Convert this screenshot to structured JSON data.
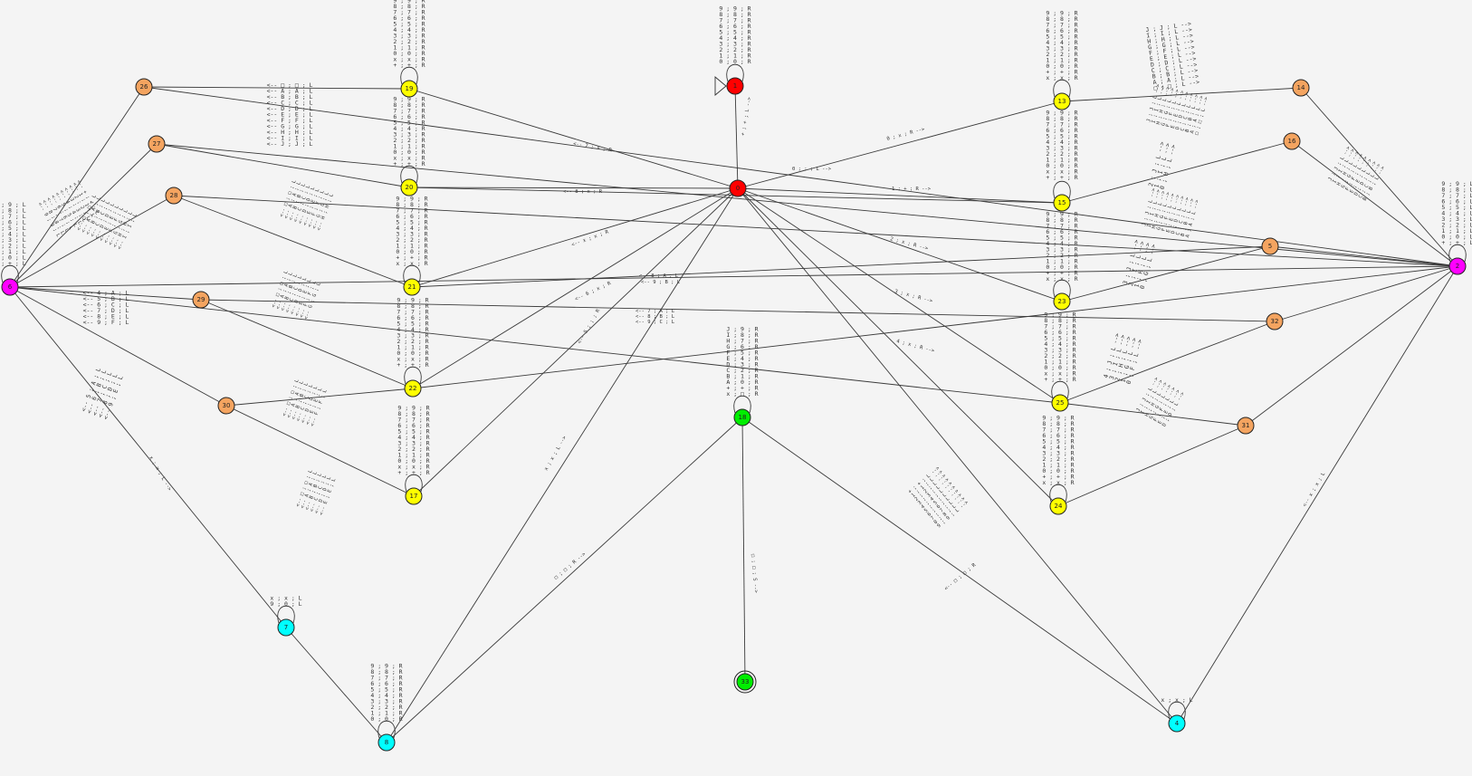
{
  "colors": {
    "magenta": "#ff00ff",
    "orange": "#f4a460",
    "yellow": "#ffff00",
    "red": "#ff0000",
    "green": "#00ee00",
    "cyan": "#00ffff"
  },
  "nodes": [
    {
      "id": "n6",
      "label": "6",
      "color": "magenta"
    },
    {
      "id": "n26",
      "label": "26",
      "color": "orange"
    },
    {
      "id": "n27",
      "label": "27",
      "color": "orange"
    },
    {
      "id": "n28",
      "label": "28",
      "color": "orange"
    },
    {
      "id": "n29",
      "label": "29",
      "color": "orange"
    },
    {
      "id": "n30",
      "label": "30",
      "color": "orange"
    },
    {
      "id": "n19",
      "label": "19",
      "color": "yellow"
    },
    {
      "id": "n20",
      "label": "20",
      "color": "yellow"
    },
    {
      "id": "n21",
      "label": "21",
      "color": "yellow"
    },
    {
      "id": "n22",
      "label": "22",
      "color": "yellow"
    },
    {
      "id": "n17",
      "label": "17",
      "color": "yellow"
    },
    {
      "id": "n0",
      "label": "0",
      "color": "red"
    },
    {
      "id": "n1",
      "label": "1",
      "color": "red"
    },
    {
      "id": "n18",
      "label": "18",
      "color": "green"
    },
    {
      "id": "n33",
      "label": "33",
      "color": "green"
    },
    {
      "id": "n7",
      "label": "7",
      "color": "cyan"
    },
    {
      "id": "n8",
      "label": "8",
      "color": "cyan"
    },
    {
      "id": "n4",
      "label": "4",
      "color": "cyan"
    },
    {
      "id": "n13",
      "label": "13",
      "color": "yellow"
    },
    {
      "id": "n15",
      "label": "15",
      "color": "yellow"
    },
    {
      "id": "n23",
      "label": "23",
      "color": "yellow"
    },
    {
      "id": "n25",
      "label": "25",
      "color": "yellow"
    },
    {
      "id": "n24",
      "label": "24",
      "color": "yellow"
    },
    {
      "id": "n14",
      "label": "14",
      "color": "orange"
    },
    {
      "id": "n16",
      "label": "16",
      "color": "orange"
    },
    {
      "id": "n5",
      "label": "5",
      "color": "orange"
    },
    {
      "id": "n32",
      "label": "32",
      "color": "orange"
    },
    {
      "id": "n31",
      "label": "31",
      "color": "orange"
    },
    {
      "id": "n2",
      "label": "2",
      "color": "magenta"
    }
  ],
  "edge_labels": [
    "+ ; + ; L -->",
    "0 ; ; ; L -->",
    "0 ; x ; R -->",
    "1 ; + ; R -->",
    "<-- 8 ; x ; R",
    "<-- 7 ; x ; R",
    "<-- x ; x ; R",
    "<-- 8 ; A ; L",
    "<-- 9 ; B ; L",
    "<-- 6 ; x ; R",
    "<-- 5 ; ; ; R",
    "x ; x ; L -->",
    "x ; x ; L -->",
    "□ ; □ ; R -->",
    "□ ; □ ; S -->",
    "<-- □ ; □ ; R",
    "<-- x ; x ; L",
    "2 ; x ; R -->",
    "3 ; x ; R -->",
    "4 ; x ; R -->",
    "<-- 7 ; A ; L",
    "<-- 8 ; B ; L",
    "<-- 9 ; C ; L"
  ],
  "stacks": {
    "s19": [
      "9 ; 9 ; R",
      "8 ; 8 ; R",
      "7 ; 7 ; R",
      "6 ; 6 ; R",
      "5 ; 5 ; R",
      "4 ; 4 ; R",
      "3 ; 3 ; R",
      "2 ; 2 ; R",
      "1 ; 1 ; R",
      "0 ; 0 ; R",
      "x ; x ; R",
      "+ ; + ; R"
    ],
    "s1": [
      "9 ; 9 ; R",
      "8 ; 8 ; R",
      "7 ; 7 ; R",
      "6 ; 6 ; R",
      "5 ; 5 ; R",
      "4 ; 4 ; R",
      "3 ; 3 ; R",
      "2 ; 2 ; R",
      "1 ; 1 ; R",
      "0 ; 0 ; R"
    ],
    "s13": [
      "9 ; 9 ; R",
      "8 ; 8 ; R",
      "7 ; 7 ; R",
      "6 ; 6 ; R",
      "5 ; 5 ; R",
      "4 ; 4 ; R",
      "3 ; 3 ; R",
      "2 ; 2 ; R",
      "1 ; 1 ; R",
      "0 ; 0 ; R",
      "+ ; + ; R",
      "x ; x ; R"
    ],
    "s20": [
      "9 ; 9 ; R",
      "8 ; 8 ; R",
      "7 ; 7 ; R",
      "6 ; 6 ; R",
      "5 ; 5 ; R",
      "4 ; 4 ; R",
      "3 ; 3 ; R",
      "2 ; 2 ; R",
      "1 ; 1 ; R",
      "0 ; 0 ; R",
      "x ; x ; R",
      "+ ; + ; R"
    ],
    "s15": [
      "9 ; 9 ; R",
      "8 ; 8 ; R",
      "7 ; 7 ; R",
      "6 ; 6 ; R",
      "5 ; 5 ; R",
      "4 ; 4 ; R",
      "3 ; 3 ; R",
      "2 ; 2 ; R",
      "1 ; 1 ; R",
      "0 ; 0 ; R",
      "x ; x ; R",
      "+ ; + ; R"
    ],
    "s21": [
      "9 ; 9 ; R",
      "8 ; 8 ; R",
      "7 ; 7 ; R",
      "6 ; 6 ; R",
      "5 ; 5 ; R",
      "4 ; 4 ; R",
      "3 ; 3 ; R",
      "2 ; 2 ; R",
      "1 ; 1 ; R",
      "0 ; 0 ; R",
      "+ ; + ; R",
      "x ; x ; R"
    ],
    "s23": [
      "9 ; 9 ; R",
      "8 ; 8 ; R",
      "7 ; 7 ; R",
      "6 ; 6 ; R",
      "5 ; 5 ; R",
      "4 ; 4 ; R",
      "3 ; 3 ; R",
      "2 ; 2 ; R",
      "1 ; 1 ; R",
      "0 ; 0 ; R",
      "+ ; + ; R",
      "x ; x ; R"
    ],
    "s22": [
      "9 ; 9 ; R",
      "8 ; 8 ; R",
      "7 ; 7 ; R",
      "6 ; 6 ; R",
      "5 ; 5 ; R",
      "4 ; 4 ; R",
      "3 ; 3 ; R",
      "2 ; 2 ; R",
      "1 ; 1 ; R",
      "0 ; 0 ; R",
      "x ; x ; R",
      "+ ; + ; R"
    ],
    "s25": [
      "9 ; 9 ; R",
      "8 ; 8 ; R",
      "7 ; 7 ; R",
      "6 ; 6 ; R",
      "5 ; 5 ; R",
      "4 ; 4 ; R",
      "3 ; 3 ; R",
      "2 ; 2 ; R",
      "1 ; 1 ; R",
      "0 ; 0 ; R",
      "x ; x ; R",
      "+ ; + ; R"
    ],
    "s17": [
      "9 ; 9 ; R",
      "8 ; 8 ; R",
      "7 ; 7 ; R",
      "6 ; 6 ; R",
      "5 ; 5 ; R",
      "4 ; 4 ; R",
      "3 ; 3 ; R",
      "2 ; 2 ; R",
      "1 ; 1 ; R",
      "0 ; 0 ; R",
      "x ; x ; R",
      "+ ; + ; R"
    ],
    "s24": [
      "9 ; 9 ; R",
      "8 ; 8 ; R",
      "7 ; 7 ; R",
      "6 ; 6 ; R",
      "5 ; 5 ; R",
      "4 ; 4 ; R",
      "3 ; 3 ; R",
      "2 ; 2 ; R",
      "1 ; 1 ; R",
      "0 ; 0 ; R",
      "+ ; + ; R",
      "x ; x ; R"
    ],
    "s18": [
      "J ; 9 ; R",
      "I ; 8 ; R",
      "H ; 7 ; R",
      "G ; 6 ; R",
      "F ; 5 ; R",
      "E ; 4 ; R",
      "D ; 3 ; R",
      "C ; 2 ; R",
      "B ; 1 ; R",
      "A ; 0 ; R",
      "+ ; + ; R",
      "x ; □ ; R"
    ],
    "s8": [
      "9 ; 9 ; R",
      "8 ; 8 ; R",
      "7 ; 7 ; R",
      "6 ; 6 ; R",
      "5 ; 5 ; R",
      "4 ; 4 ; R",
      "3 ; 3 ; R",
      "2 ; 2 ; R",
      "1 ; 1 ; R",
      "0 ; 0 ; R"
    ],
    "s6": [
      "9 ; 9 ; L",
      "8 ; 8 ; L",
      "7 ; 7 ; L",
      "6 ; 6 ; L",
      "5 ; 5 ; L",
      "4 ; 4 ; L",
      "3 ; 3 ; L",
      "2 ; 2 ; L",
      "1 ; 1 ; L",
      "0 ; 0 ; L",
      "+ ; + ; L"
    ],
    "s2": [
      "9 ; 9 ; L",
      "8 ; 8 ; L",
      "7 ; 7 ; L",
      "6 ; 6 ; L",
      "5 ; 5 ; L",
      "4 ; 4 ; L",
      "3 ; 3 ; L",
      "2 ; 2 ; L",
      "1 ; 1 ; L",
      "0 ; 0 ; L",
      "+ ; + ; L"
    ],
    "s14": [
      "J ; J ; L -->",
      "I ; I ; L -->",
      "H ; H ; L -->",
      "G ; G ; L -->",
      "F ; F ; L -->",
      "E ; E ; L -->",
      "D ; D ; L -->",
      "C ; C ; L -->",
      "B ; B ; L -->",
      "A ; A ; L -->",
      "□ ; □ ; L -->"
    ],
    "s26": [
      "<-- □ ; □ ; L",
      "<-- A ; A ; L",
      "<-- B ; B ; L",
      "<-- C ; C ; L",
      "<-- D ; D ; L",
      "<-- E ; E ; L",
      "<-- F ; F ; L",
      "<-- G ; G ; L",
      "<-- H ; H ; L",
      "<-- I ; I ; L",
      "<-- J ; J ; L"
    ],
    "s7": [
      "x ; x ; L",
      "9 ; 0 ; L"
    ],
    "s4": [
      "x ; x ; L"
    ],
    "s29": [
      "<-- 4 ; A ; L",
      "<-- 5 ; B ; L",
      "<-- 6 ; C ; L",
      "<-- 7 ; D ; L",
      "<-- 8 ; E ; L",
      "<-- 9 ; F ; L"
    ],
    "s30": [
      "<-- 5 ; A ; L",
      "<-- 6 ; B ; L",
      "<-- 7 ; C ; L",
      "<-- 8 ; D ; L",
      "<-- 9 ; E ; L"
    ],
    "s32": [
      "4 ; J ; L -->",
      "3 ; I ; L -->",
      "2 ; H ; L -->",
      "1 ; G ; L -->",
      "0 ; F ; L -->"
    ],
    "s5": [
      "3 ; J ; L -->",
      "2 ; I ; L -->",
      "1 ; H ; L -->",
      "0 ; G ; L -->"
    ],
    "s16": [
      "2 ; J ; L -->",
      "1 ; I ; L -->",
      "0 ; H ; L -->"
    ]
  },
  "rotated_blocks": {
    "r1": [
      "<-- □ ; □ ; L",
      "<-- A ; A ; L",
      "<-- B ; B ; L",
      "<-- C ; C ; L",
      "<-- D ; D ; L",
      "<-- E ; E ; L",
      "<-- F ; F ; L",
      "<-- G ; G ; L",
      "<-- H ; H ; L",
      "<-- I ; I ; L"
    ],
    "r2": [
      "<-- □ ; □ ; L",
      "<-- A ; A ; L",
      "<-- B ; B ; L",
      "<-- C ; C ; L",
      "<-- D ; D ; L",
      "<-- E ; E ; L",
      "<-- F ; F ; L",
      "<-- G ; G ; L",
      "<-- H ; H ; L"
    ],
    "r3": [
      "<-- □ ; □ ; L",
      "<-- A ; A ; L",
      "<-- B ; B ; L",
      "<-- C ; C ; L",
      "<-- D ; D ; L",
      "<-- E ; E ; L",
      "<-- F ; F ; L",
      "<-- G ; G ; L"
    ],
    "r4": [
      "<-- □ ; □ ; L",
      "<-- A ; A ; L",
      "<-- B ; B ; L",
      "<-- C ; C ; L",
      "<-- D ; D ; L",
      "<-- E ; E ; L",
      "<-- F ; F ; L"
    ],
    "r5": [
      "<-- □ ; □ ; L",
      "<-- A ; A ; L",
      "<-- B ; B ; L",
      "<-- C ; C ; L",
      "<-- D ; D ; L",
      "<-- E ; E ; L"
    ],
    "r6": [
      "J ; J ; L -->",
      "I ; I ; L -->",
      "H ; H ; L -->",
      "G ; G ; L -->",
      "F ; F ; L -->",
      "E ; E ; L -->",
      "D ; D ; L -->",
      "C ; C ; L -->",
      "B ; B ; L -->",
      "A ; A ; L -->",
      "□ ; □ ; L -->"
    ],
    "r7": [
      "J ; J ; L -->",
      "I ; I ; L -->",
      "H ; H ; L -->",
      "G ; G ; L -->",
      "F ; F ; L -->",
      "E ; E ; L -->",
      "D ; D ; L -->",
      "C ; C ; L -->",
      "B ; B ; L -->",
      "A ; A ; L -->"
    ],
    "r8": [
      "J ; J ; L -->",
      "I ; I ; L -->",
      "H ; H ; L -->",
      "G ; G ; L -->",
      "F ; F ; L -->",
      "E ; E ; L -->",
      "D ; D ; L -->",
      "C ; C ; L -->",
      "B ; B ; L -->"
    ],
    "r9": [
      "J ; J ; L -->",
      "I ; I ; L -->",
      "H ; H ; L -->",
      "G ; G ; L -->",
      "F ; F ; L -->",
      "E ; E ; L -->",
      "D ; D ; L -->"
    ],
    "r10": [
      "+ ; + ; L -->",
      "1 ; 1 ; L -->",
      "2 ; 2 ; L -->",
      "3 ; 3 ; L -->",
      "4 ; 4 ; L -->",
      "5 ; 5 ; L -->",
      "6 ; 6 ; L -->",
      "7 ; 7 ; L -->",
      "8 ; 8 ; L -->",
      "9 ; 9 ; L -->"
    ],
    "r11": [
      "<-- + ; + ; L",
      "<-- 1 ; 1 ; L",
      "<-- 2 ; 2 ; L",
      "<-- 3 ; 3 ; L",
      "<-- 4 ; 4 ; L",
      "<-- 5 ; 5 ; L",
      "<-- 6 ; 6 ; L",
      "<-- 7 ; 7 ; L",
      "<-- 8 ; 8 ; L",
      "<-- 9 ; 9 ; L"
    ]
  }
}
